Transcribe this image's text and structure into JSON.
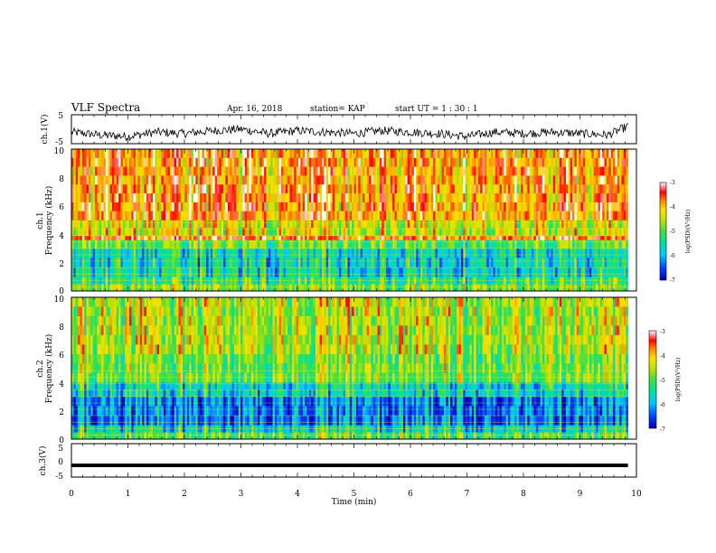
{
  "header": {
    "title": "VLF Spectra",
    "date": "Apr. 16, 2018",
    "station": "station= KAP",
    "start": "start  UT  =   1 : 30 : 1"
  },
  "colors": {
    "spectrum_scale": [
      "#0000b4",
      "#0080ff",
      "#00e0e0",
      "#40e040",
      "#c8e000",
      "#ffe000",
      "#ff8000",
      "#ff0000",
      "#ffffff"
    ],
    "trace": "#000000"
  },
  "chart_data": [
    {
      "type": "line",
      "name": "ch1-waveform",
      "ylabel": "ch.1(V)",
      "xlim": [
        0,
        10
      ],
      "ylim": [
        -5,
        5
      ],
      "yticks": [
        "5",
        "-5"
      ],
      "note_series": "noisy waveform around -1 V spanning 0 to 9.85 min",
      "x": [
        0,
        0.5,
        1,
        1.5,
        2,
        2.5,
        3,
        3.5,
        4,
        4.5,
        5,
        5.5,
        6,
        6.5,
        7,
        7.5,
        8,
        8.5,
        9,
        9.5,
        9.85
      ],
      "y": [
        -1,
        -2,
        -2.5,
        -1,
        -1.5,
        -0.5,
        0,
        -1.5,
        -0.5,
        -1,
        -1.5,
        -0.5,
        -1,
        -1.5,
        -2.5,
        -1,
        -1.5,
        -1,
        -1.5,
        -2,
        1
      ]
    },
    {
      "type": "heatmap",
      "name": "ch1-spectrogram",
      "ylabel_line1": "ch.1",
      "ylabel_line2": "Frequency (kHz)",
      "xlim": [
        0,
        10
      ],
      "ylim": [
        0,
        10
      ],
      "yticks": [
        "0",
        "2",
        "4",
        "6",
        "8",
        "10"
      ],
      "data_extent_x": [
        0,
        9.85
      ],
      "bands_log_psd": [
        {
          "f": [
            0,
            0.5
          ],
          "value": -4.8
        },
        {
          "f": [
            0.5,
            1.0
          ],
          "value": -5.2
        },
        {
          "f": [
            1.0,
            3.0
          ],
          "value": -5.6
        },
        {
          "f": [
            3.0,
            3.6
          ],
          "value": -5.0
        },
        {
          "f": [
            3.6,
            3.9
          ],
          "value": -3.6
        },
        {
          "f": [
            3.9,
            5.0
          ],
          "value": -4.4
        },
        {
          "f": [
            5.0,
            10.0
          ],
          "value": -3.8
        }
      ],
      "colorbar": {
        "label": "log(PSD)(V²/Hz)",
        "range": [
          -7,
          -3
        ],
        "ticks": [
          "-3",
          "-4",
          "-5",
          "-6",
          "-7"
        ]
      }
    },
    {
      "type": "heatmap",
      "name": "ch2-spectrogram",
      "ylabel_line1": "ch.2",
      "ylabel_line2": "Frequency (kHz)",
      "xlim": [
        0,
        10
      ],
      "ylim": [
        0,
        10
      ],
      "yticks": [
        "0",
        "2",
        "4",
        "6",
        "8",
        "10"
      ],
      "data_extent_x": [
        0,
        9.85
      ],
      "bands_log_psd": [
        {
          "f": [
            0,
            0.5
          ],
          "value": -5.0
        },
        {
          "f": [
            0.5,
            1.0
          ],
          "value": -5.6
        },
        {
          "f": [
            1.0,
            3.0
          ],
          "value": -6.2
        },
        {
          "f": [
            3.0,
            4.0
          ],
          "value": -5.6
        },
        {
          "f": [
            4.0,
            6.0
          ],
          "value": -4.8
        },
        {
          "f": [
            6.0,
            10.0
          ],
          "value": -4.5
        }
      ],
      "colorbar": {
        "label": "log(PSD)(V²/Hz)",
        "range": [
          -7,
          -3
        ],
        "ticks": [
          "-3",
          "-4",
          "-5",
          "-6",
          "-7"
        ]
      }
    },
    {
      "type": "line",
      "name": "ch3-waveform",
      "ylabel": "ch.3(V)",
      "xlabel": "Time (min)",
      "xlim": [
        0,
        10
      ],
      "ylim": [
        -5,
        5
      ],
      "yticks": [
        "5",
        "0",
        "-5"
      ],
      "xticks": [
        "0",
        "1",
        "2",
        "3",
        "4",
        "5",
        "6",
        "7",
        "8",
        "9",
        "10"
      ],
      "x": [
        0,
        9.85
      ],
      "y": [
        -1.5,
        -1.5
      ]
    }
  ]
}
